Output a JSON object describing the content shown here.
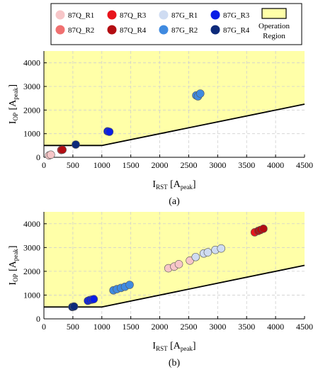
{
  "legend": {
    "items": [
      {
        "label": "87Q_R1",
        "color": "#f7c6c8"
      },
      {
        "label": "87Q_R2",
        "color": "#f07070"
      },
      {
        "label": "87Q_R3",
        "color": "#e8141c"
      },
      {
        "label": "87Q_R4",
        "color": "#b30d12"
      },
      {
        "label": "87G_R1",
        "color": "#cfdcf2"
      },
      {
        "label": "87G_R2",
        "color": "#3f8ae0"
      },
      {
        "label": "87G_R3",
        "color": "#0a1ee6"
      },
      {
        "label": "87G_R4",
        "color": "#0d2a7a"
      }
    ],
    "region_line1": "Operation",
    "region_line2": "Region",
    "region_color": "#ffffa8"
  },
  "chart_data": [
    {
      "type": "scatter",
      "caption": "(a)",
      "xlabel_main": "I",
      "xlabel_sub": "RST",
      "xlabel_unit_open": " [A",
      "xlabel_unit_sub": "peak",
      "xlabel_unit_close": "]",
      "ylabel_main": "I",
      "ylabel_sub": "OP",
      "ylabel_unit_open": " [A",
      "ylabel_unit_sub": "peak",
      "ylabel_unit_close": "]",
      "xlim": [
        0,
        4500
      ],
      "ylim": [
        0,
        4500
      ],
      "xticks": [
        "0",
        "500",
        "1000",
        "1500",
        "2000",
        "2500",
        "3000",
        "3500",
        "4000",
        "4500"
      ],
      "yticks": [
        "0",
        "1000",
        "2000",
        "3000",
        "4000"
      ],
      "boundary": [
        [
          0,
          500
        ],
        [
          1000,
          500
        ],
        [
          4500,
          2250
        ]
      ],
      "series": [
        {
          "name": "87Q_R1",
          "color": "#f7c6c8",
          "points": [
            [
              90,
              80
            ],
            [
              120,
              110
            ]
          ]
        },
        {
          "name": "87Q_R3",
          "color": "#e8141c",
          "points": [
            [
              300,
              310
            ]
          ]
        },
        {
          "name": "87Q_R4",
          "color": "#b30d12",
          "points": [
            [
              320,
              320
            ]
          ]
        },
        {
          "name": "87G_R4",
          "color": "#0d2a7a",
          "points": [
            [
              550,
              540
            ]
          ]
        },
        {
          "name": "87G_R3",
          "color": "#0a1ee6",
          "points": [
            [
              1100,
              1100
            ],
            [
              1130,
              1080
            ]
          ]
        },
        {
          "name": "87G_R2",
          "color": "#3f8ae0",
          "points": [
            [
              2630,
              2620
            ],
            [
              2660,
              2580
            ],
            [
              2700,
              2700
            ]
          ]
        }
      ]
    },
    {
      "type": "scatter",
      "caption": "(b)",
      "xlabel_main": "I",
      "xlabel_sub": "RST",
      "xlabel_unit_open": " [A",
      "xlabel_unit_sub": "peak",
      "xlabel_unit_close": "]",
      "ylabel_main": "I",
      "ylabel_sub": "OP",
      "ylabel_unit_open": " [A",
      "ylabel_unit_sub": "peak",
      "ylabel_unit_close": "]",
      "xlim": [
        0,
        4500
      ],
      "ylim": [
        0,
        4500
      ],
      "xticks": [
        "0",
        "500",
        "1000",
        "1500",
        "2000",
        "2500",
        "3000",
        "3500",
        "4000",
        "4500"
      ],
      "yticks": [
        "0",
        "1000",
        "2000",
        "3000",
        "4000"
      ],
      "boundary": [
        [
          0,
          500
        ],
        [
          1000,
          500
        ],
        [
          4500,
          2250
        ]
      ],
      "series": [
        {
          "name": "87G_R4",
          "color": "#0d2a7a",
          "points": [
            [
              490,
              500
            ],
            [
              520,
              520
            ]
          ]
        },
        {
          "name": "87G_R3",
          "color": "#0a1ee6",
          "points": [
            [
              760,
              760
            ],
            [
              790,
              790
            ],
            [
              830,
              810
            ],
            [
              860,
              830
            ]
          ]
        },
        {
          "name": "87G_R2",
          "color": "#3f8ae0",
          "points": [
            [
              1200,
              1200
            ],
            [
              1260,
              1250
            ],
            [
              1330,
              1300
            ],
            [
              1400,
              1350
            ],
            [
              1480,
              1430
            ]
          ]
        },
        {
          "name": "87Q_R1",
          "color": "#f7c6c8",
          "points": [
            [
              2150,
              2130
            ],
            [
              2250,
              2200
            ],
            [
              2330,
              2300
            ],
            [
              2520,
              2450
            ]
          ]
        },
        {
          "name": "87G_R1",
          "color": "#cfdcf2",
          "points": [
            [
              2620,
              2600
            ],
            [
              2760,
              2750
            ],
            [
              2830,
              2800
            ],
            [
              2960,
              2900
            ],
            [
              3060,
              2960
            ]
          ]
        },
        {
          "name": "87Q_R3",
          "color": "#e8141c",
          "points": [
            [
              3640,
              3640
            ]
          ]
        },
        {
          "name": "87Q_R4",
          "color": "#b30d12",
          "points": [
            [
              3700,
              3700
            ],
            [
              3740,
              3740
            ],
            [
              3790,
              3790
            ]
          ]
        }
      ]
    }
  ]
}
